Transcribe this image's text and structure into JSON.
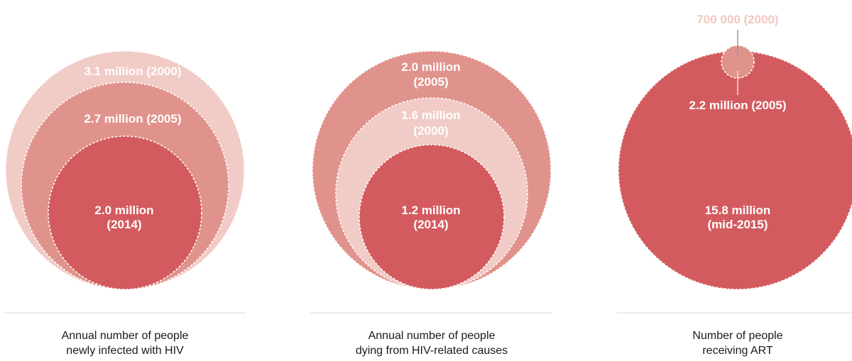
{
  "colors": {
    "light": "#f1cbc6",
    "mid": "#e0938c",
    "dark": "#d35b5f",
    "label_light_on_light": "#f3c6c0",
    "divider": "#d9d9d9"
  },
  "chart_data": [
    {
      "type": "bubble",
      "caption": [
        "Annual number of people",
        "newly infected with HIV"
      ],
      "bubbles": [
        {
          "label": "3.1 million (2000)",
          "value": 3.1,
          "unit": "million",
          "year": "2000",
          "color": "light"
        },
        {
          "label": "2.7 million (2005)",
          "value": 2.7,
          "unit": "million",
          "year": "2005",
          "color": "mid"
        },
        {
          "label": "2.0 million",
          "label2": "(2014)",
          "value": 2.0,
          "unit": "million",
          "year": "2014",
          "color": "dark"
        }
      ]
    },
    {
      "type": "bubble",
      "caption": [
        "Annual number of people",
        "dying from HIV-related causes"
      ],
      "bubbles": [
        {
          "label": "2.0 million",
          "label2": "(2005)",
          "value": 2.0,
          "unit": "million",
          "year": "2005",
          "color": "mid"
        },
        {
          "label": "1.6 million",
          "label2": "(2000)",
          "value": 1.6,
          "unit": "million",
          "year": "2000",
          "color": "light"
        },
        {
          "label": "1.2 million",
          "label2": "(2014)",
          "value": 1.2,
          "unit": "million",
          "year": "2014",
          "color": "dark"
        }
      ]
    },
    {
      "type": "bubble",
      "caption": [
        "Number of people",
        "receiving ART"
      ],
      "bubbles": [
        {
          "label": "15.8 million",
          "label2": "(mid-2015)",
          "value": 15.8,
          "unit": "million",
          "year": "mid-2015",
          "color": "dark"
        },
        {
          "label": "2.2 million (2005)",
          "value": 2.2,
          "unit": "million",
          "year": "2005",
          "color": "dark"
        },
        {
          "label": "700 000 (2000)",
          "value": 0.7,
          "unit": "million",
          "year": "2000",
          "color": "mid"
        }
      ]
    }
  ]
}
